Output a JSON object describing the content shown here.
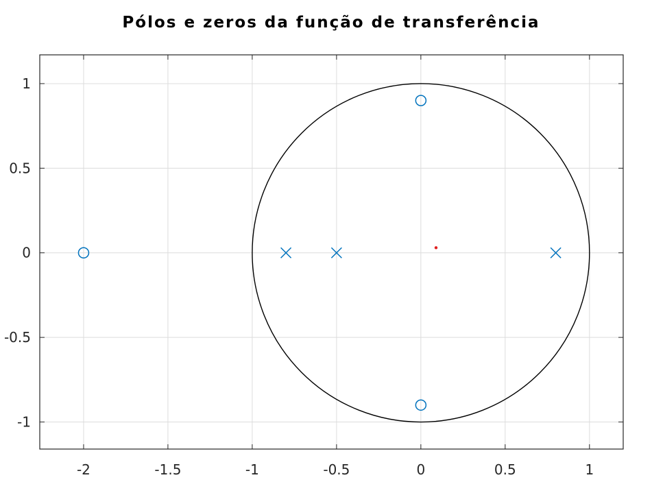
{
  "chart_data": {
    "type": "scatter",
    "title": "Pólos e zeros da função de transferência",
    "xlabel": "",
    "ylabel": "",
    "xlim": [
      -2.26,
      1.2
    ],
    "ylim": [
      -1.16,
      1.17
    ],
    "grid": true,
    "xticks": [
      -2,
      -1.5,
      -1,
      -0.5,
      0,
      0.5,
      1
    ],
    "xtick_labels": [
      "-2",
      "-1.5",
      "-1",
      "-0.5",
      "0",
      "0.5",
      "1"
    ],
    "yticks": [
      -1,
      -0.5,
      0,
      0.5,
      1
    ],
    "ytick_labels": [
      "-1",
      "-0.5",
      "0",
      "0.5",
      "1"
    ],
    "unit_circle": {
      "center": [
        0,
        0
      ],
      "radius": 1,
      "color": "#000000"
    },
    "series": [
      {
        "marker": "o",
        "color": "#0072BD",
        "points": [
          [
            -2,
            0
          ],
          [
            0,
            0.9
          ],
          [
            0,
            -0.9
          ]
        ]
      },
      {
        "marker": "x",
        "color": "#0072BD",
        "points": [
          [
            -0.8,
            0
          ],
          [
            -0.5,
            0
          ],
          [
            0.8,
            0
          ]
        ]
      },
      {
        "marker": "dot",
        "color": "#E02020",
        "points": [
          [
            0.09,
            0.03
          ]
        ]
      }
    ]
  }
}
